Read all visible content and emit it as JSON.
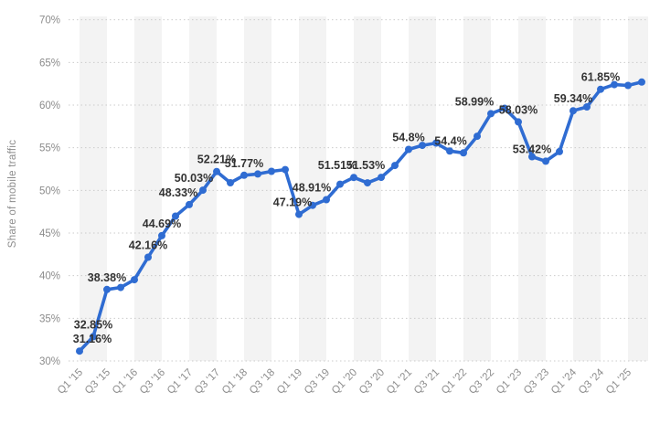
{
  "chart_data": {
    "type": "line",
    "title": "",
    "xlabel": "",
    "ylabel": "Share of mobile traffic",
    "ylim": [
      30,
      70
    ],
    "ytick_step": 5,
    "ytick_labels": [
      "30%",
      "35%",
      "40%",
      "45%",
      "50%",
      "55%",
      "60%",
      "65%",
      "70%"
    ],
    "xtick_every": 2,
    "xtick_labels": [
      "Q1 '15",
      "Q3 '15",
      "Q1 '16",
      "Q3 '16",
      "Q1 '17",
      "Q3 '17",
      "Q1 '18",
      "Q3 '18",
      "Q1 '19",
      "Q3 '19",
      "Q1 '20",
      "Q3 '20",
      "Q1 '21",
      "Q3 '21",
      "Q1 '22",
      "Q3 '22",
      "Q1 '23",
      "Q3 '23",
      "Q1 '24",
      "Q3 '24",
      "Q1 '25"
    ],
    "grid": "horizontal-dotted",
    "plot_bands": "alternating-vertical-2-quarters",
    "legend": "none",
    "x": [
      "Q1 '15",
      "Q2 '15",
      "Q3 '15",
      "Q4 '15",
      "Q1 '16",
      "Q2 '16",
      "Q3 '16",
      "Q4 '16",
      "Q1 '17",
      "Q2 '17",
      "Q3 '17",
      "Q4 '17",
      "Q1 '18",
      "Q2 '18",
      "Q3 '18",
      "Q4 '18",
      "Q1 '19",
      "Q2 '19",
      "Q3 '19",
      "Q4 '19",
      "Q1 '20",
      "Q2 '20",
      "Q3 '20",
      "Q4 '20",
      "Q1 '21",
      "Q2 '21",
      "Q3 '21",
      "Q4 '21",
      "Q1 '22",
      "Q2 '22",
      "Q3 '22",
      "Q4 '22",
      "Q1 '23",
      "Q2 '23",
      "Q3 '23",
      "Q4 '23",
      "Q1 '24",
      "Q2 '24",
      "Q3 '24",
      "Q4 '24",
      "Q1 '25",
      "Q2 '25"
    ],
    "series": [
      {
        "name": "Share of mobile traffic",
        "values": [
          31.16,
          32.85,
          38.38,
          38.61,
          39.53,
          42.16,
          44.69,
          46.98,
          48.33,
          50.03,
          52.21,
          50.89,
          51.77,
          51.92,
          52.23,
          52.44,
          47.19,
          48.25,
          48.91,
          50.72,
          51.51,
          50.88,
          51.53,
          52.92,
          54.8,
          55.28,
          55.54,
          54.61,
          54.4,
          56.35,
          58.99,
          59.62,
          58.03,
          53.95,
          53.42,
          54.55,
          59.34,
          59.79,
          61.85,
          62.4,
          62.3,
          62.7
        ]
      }
    ],
    "data_labels": [
      {
        "index": 0,
        "text": "31.16%"
      },
      {
        "index": 1,
        "text": "32.85%"
      },
      {
        "index": 2,
        "text": "38.38%"
      },
      {
        "index": 5,
        "text": "42.16%"
      },
      {
        "index": 6,
        "text": "44.69%"
      },
      {
        "index": 8,
        "text": "48.33%"
      },
      {
        "index": 9,
        "text": "50.03%"
      },
      {
        "index": 10,
        "text": "52.21%"
      },
      {
        "index": 12,
        "text": "51.77%"
      },
      {
        "index": 16,
        "text": "47.19%"
      },
      {
        "index": 18,
        "text": "48.91%"
      },
      {
        "index": 20,
        "text": "51.51%"
      },
      {
        "index": 22,
        "text": "51.53%"
      },
      {
        "index": 24,
        "text": "54.8%"
      },
      {
        "index": 28,
        "text": "54.4%"
      },
      {
        "index": 30,
        "text": "58.99%"
      },
      {
        "index": 32,
        "text": "58.03%"
      },
      {
        "index": 34,
        "text": "53.42%"
      },
      {
        "index": 36,
        "text": "59.34%"
      },
      {
        "index": 38,
        "text": "61.85%"
      }
    ],
    "colors": {
      "line": "#2F6CD2",
      "marker": "#2F6CD2",
      "band": "#f3f3f3",
      "grid": "#cbcbcb",
      "tick_text": "#8c8c8c",
      "label_text": "#333333",
      "background": "#ffffff"
    }
  }
}
